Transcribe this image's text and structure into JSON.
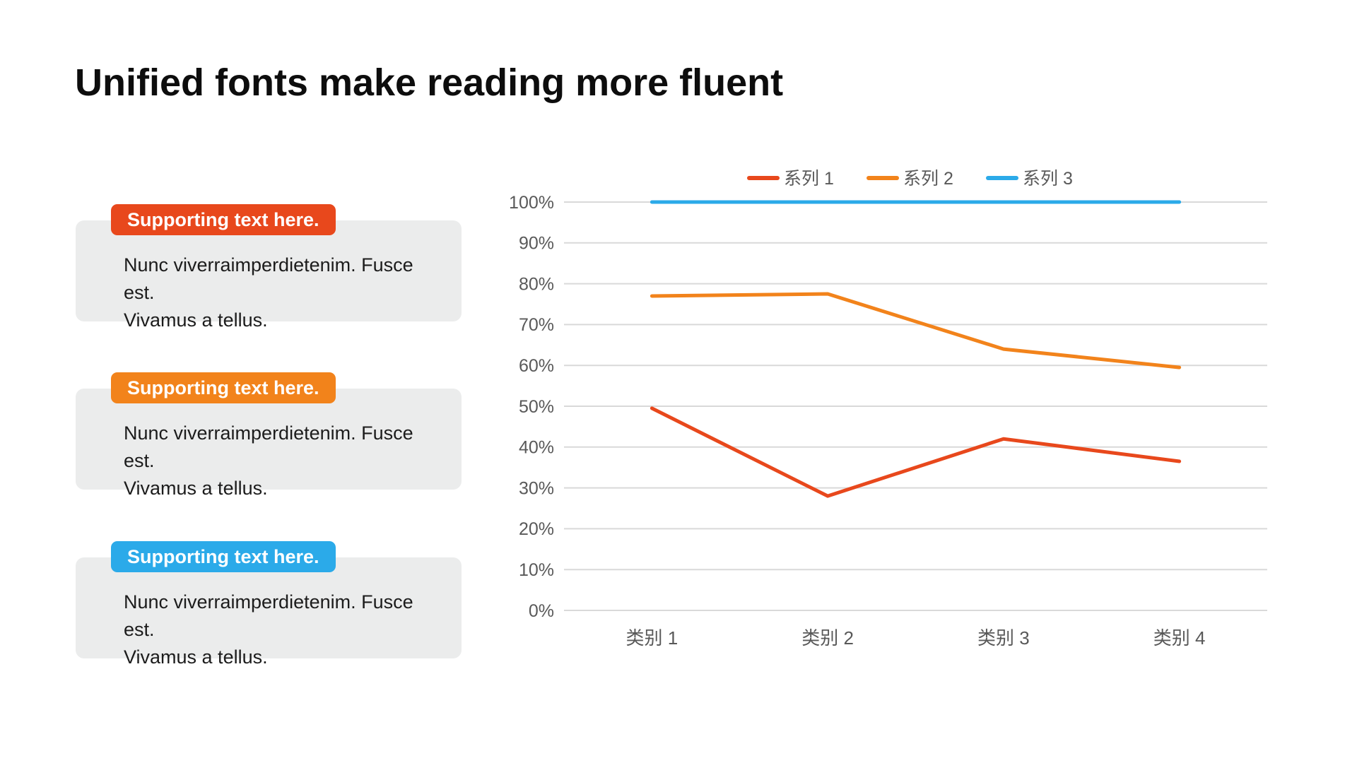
{
  "slide": {
    "title": "Unified fonts make reading more fluent"
  },
  "cards": [
    {
      "badge": "Supporting text here.",
      "color": "#E8481C",
      "line1": "Nunc viverraimperdietenim. Fusce est.",
      "line2": "Vivamus a tellus."
    },
    {
      "badge": "Supporting text here.",
      "color": "#F2831B",
      "line1": "Nunc viverraimperdietenim. Fusce est.",
      "line2": "Vivamus a tellus."
    },
    {
      "badge": "Supporting text here.",
      "color": "#2BAAE9",
      "line1": "Nunc viverraimperdietenim. Fusce est.",
      "line2": "Vivamus a tellus."
    }
  ],
  "chart_data": {
    "type": "line",
    "title": "",
    "categories": [
      "类别 1",
      "类别 2",
      "类别 3",
      "类别 4"
    ],
    "series": [
      {
        "name": "系列 1",
        "color": "#E8481C",
        "values": [
          49.5,
          28,
          42,
          36.5
        ]
      },
      {
        "name": "系列 2",
        "color": "#F2831B",
        "values": [
          77,
          77.5,
          64,
          59.5
        ]
      },
      {
        "name": "系列 3",
        "color": "#2BAAE9",
        "values": [
          100,
          100,
          100,
          100
        ]
      }
    ],
    "ylim": [
      0,
      100
    ],
    "y_tick_step": 10,
    "y_tick_suffix": "%",
    "grid": true,
    "legend_position": "top",
    "label_color": "#595959",
    "gridline_color": "#D9D9D9"
  }
}
